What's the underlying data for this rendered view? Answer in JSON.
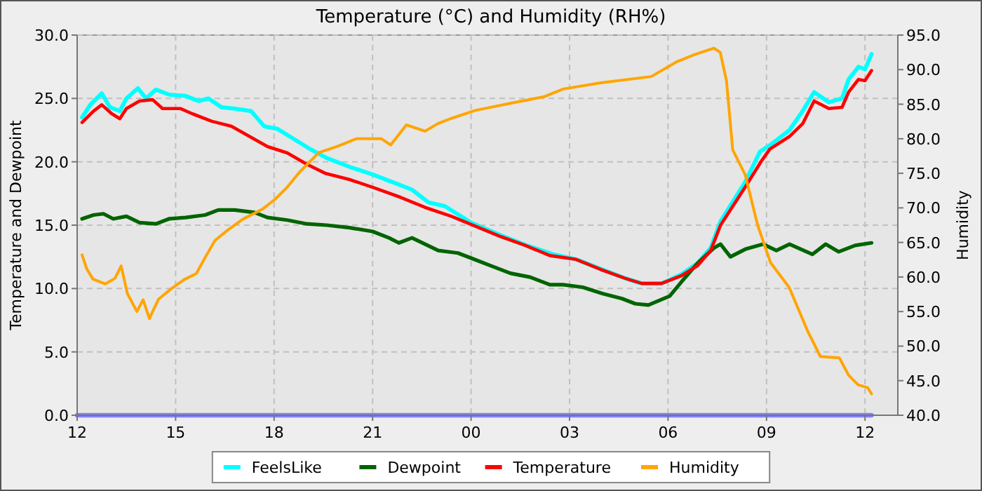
{
  "chart_data": {
    "type": "line",
    "title": "Temperature (°C) and Humidity (RH%)",
    "ylabel": "Temperature and Dewpoint",
    "y2label": "Humidity",
    "xlim": [
      12,
      37
    ],
    "xticks": [
      {
        "value": 12,
        "label": "12"
      },
      {
        "value": 15,
        "label": "15"
      },
      {
        "value": 18,
        "label": "18"
      },
      {
        "value": 21,
        "label": "21"
      },
      {
        "value": 24,
        "label": "00"
      },
      {
        "value": 27,
        "label": "03"
      },
      {
        "value": 30,
        "label": "06"
      },
      {
        "value": 33,
        "label": "09"
      },
      {
        "value": 36,
        "label": "12"
      }
    ],
    "ylim": [
      0,
      30
    ],
    "yticks": [
      {
        "value": 0,
        "label": "0.0"
      },
      {
        "value": 5,
        "label": "5.0"
      },
      {
        "value": 10,
        "label": "10.0"
      },
      {
        "value": 15,
        "label": "15.0"
      },
      {
        "value": 20,
        "label": "20.0"
      },
      {
        "value": 25,
        "label": "25.0"
      },
      {
        "value": 30,
        "label": "30.0"
      }
    ],
    "y2lim": [
      40,
      95
    ],
    "y2ticks": [
      {
        "value": 40,
        "label": "40.0"
      },
      {
        "value": 45,
        "label": "45.0"
      },
      {
        "value": 50,
        "label": "50.0"
      },
      {
        "value": 55,
        "label": "55.0"
      },
      {
        "value": 60,
        "label": "60.0"
      },
      {
        "value": 65,
        "label": "65.0"
      },
      {
        "value": 70,
        "label": "70.0"
      },
      {
        "value": 75,
        "label": "75.0"
      },
      {
        "value": 80,
        "label": "80.0"
      },
      {
        "value": 85,
        "label": "85.0"
      },
      {
        "value": 90,
        "label": "90.0"
      },
      {
        "value": 95,
        "label": "95.0"
      }
    ],
    "grid": true,
    "legend": "bottom",
    "marker": "none",
    "line_style": "solid",
    "series": [
      {
        "color": "#8080ff",
        "x": [
          12,
          36.2
        ],
        "values": [
          0,
          0
        ]
      },
      {
        "name": "FeelsLike",
        "color": "#00ffff",
        "x": [
          12.15,
          12.4,
          12.75,
          13.0,
          13.3,
          13.5,
          13.85,
          14.1,
          14.4,
          14.8,
          15.3,
          15.7,
          16.0,
          16.4,
          16.8,
          17.3,
          17.7,
          18.1,
          18.6,
          19.1,
          19.6,
          20.3,
          21.0,
          21.6,
          22.2,
          22.7,
          23.2,
          24.0,
          24.9,
          25.7,
          26.5,
          27.2,
          28.0,
          28.7,
          29.2,
          29.8,
          30.4,
          30.9,
          31.3,
          31.6,
          32.35,
          32.8,
          33.1,
          33.7,
          34.1,
          34.45,
          34.9,
          35.3,
          35.5,
          35.8,
          36.0,
          36.2
        ],
        "values": [
          23.5,
          24.5,
          25.4,
          24.3,
          24.0,
          25.0,
          25.8,
          25.0,
          25.7,
          25.3,
          25.2,
          24.8,
          25.0,
          24.3,
          24.2,
          24.0,
          22.8,
          22.6,
          21.8,
          21.0,
          20.3,
          19.6,
          19.0,
          18.4,
          17.8,
          16.8,
          16.5,
          15.2,
          14.2,
          13.4,
          12.7,
          12.3,
          11.5,
          10.8,
          10.4,
          10.4,
          11.1,
          12.0,
          13.2,
          15.3,
          18.4,
          20.8,
          21.3,
          22.5,
          24.0,
          25.5,
          24.7,
          25.0,
          26.5,
          27.5,
          27.3,
          28.5
        ]
      },
      {
        "name": "Dewpoint",
        "color": "#006400",
        "x": [
          12.15,
          12.5,
          12.8,
          13.1,
          13.5,
          13.9,
          14.4,
          14.8,
          15.3,
          15.9,
          16.3,
          16.8,
          17.4,
          17.8,
          18.4,
          19.0,
          19.6,
          20.3,
          21.0,
          21.5,
          21.8,
          22.2,
          22.6,
          23.0,
          23.6,
          24.1,
          24.6,
          25.2,
          25.8,
          26.4,
          26.8,
          27.4,
          28.0,
          28.6,
          29.0,
          29.4,
          30.05,
          30.4,
          30.9,
          31.4,
          31.6,
          31.9,
          32.35,
          32.9,
          33.3,
          33.7,
          34.4,
          34.8,
          35.2,
          35.7,
          36.2
        ],
        "values": [
          15.5,
          15.8,
          15.9,
          15.5,
          15.7,
          15.2,
          15.1,
          15.5,
          15.6,
          15.8,
          16.2,
          16.2,
          16.0,
          15.6,
          15.4,
          15.1,
          15.0,
          14.8,
          14.5,
          14.0,
          13.6,
          14.0,
          13.5,
          13.0,
          12.8,
          12.3,
          11.8,
          11.2,
          10.9,
          10.3,
          10.3,
          10.1,
          9.6,
          9.2,
          8.8,
          8.7,
          9.4,
          10.5,
          12.0,
          13.2,
          13.5,
          12.5,
          13.1,
          13.5,
          13.0,
          13.5,
          12.7,
          13.5,
          12.9,
          13.4,
          13.6
        ]
      },
      {
        "name": "Temperature",
        "color": "#ff0000",
        "x": [
          12.15,
          12.5,
          12.75,
          13.05,
          13.3,
          13.5,
          13.9,
          14.3,
          14.6,
          15.15,
          15.5,
          16.1,
          16.7,
          17.25,
          17.8,
          18.4,
          19.0,
          19.55,
          20.3,
          21.1,
          21.85,
          22.6,
          23.4,
          24.15,
          24.9,
          25.65,
          26.4,
          27.2,
          27.95,
          28.7,
          29.2,
          29.8,
          30.4,
          30.9,
          31.3,
          31.6,
          32.35,
          32.83,
          33.1,
          33.7,
          34.1,
          34.45,
          34.9,
          35.3,
          35.5,
          35.8,
          36.0,
          36.2
        ],
        "values": [
          23.1,
          24.0,
          24.5,
          23.8,
          23.4,
          24.2,
          24.8,
          24.9,
          24.2,
          24.2,
          23.8,
          23.2,
          22.8,
          22.0,
          21.2,
          20.7,
          19.8,
          19.1,
          18.6,
          17.9,
          17.2,
          16.4,
          15.7,
          14.9,
          14.1,
          13.4,
          12.6,
          12.3,
          11.5,
          10.8,
          10.4,
          10.4,
          11.0,
          11.8,
          13.0,
          15.0,
          18.0,
          20.0,
          21.0,
          22.0,
          23.0,
          24.8,
          24.2,
          24.3,
          25.5,
          26.5,
          26.4,
          27.2
        ]
      },
      {
        "name": "Humidity",
        "color": "#ffa500",
        "axis": "y2",
        "x": [
          12.15,
          12.29,
          12.48,
          12.86,
          13.15,
          13.34,
          13.53,
          13.82,
          14.01,
          14.2,
          14.48,
          14.87,
          15.25,
          15.63,
          15.92,
          16.2,
          16.59,
          17.06,
          17.64,
          18.02,
          18.4,
          18.78,
          19.36,
          19.93,
          20.5,
          21.27,
          21.55,
          22.03,
          22.6,
          22.99,
          23.37,
          24.13,
          25.28,
          26.24,
          26.81,
          27.96,
          29.49,
          30.25,
          30.82,
          31.4,
          31.59,
          31.78,
          31.97,
          32.35,
          32.73,
          33.12,
          33.69,
          34.26,
          34.64,
          35.22,
          35.5,
          35.79,
          36.08,
          36.2
        ],
        "values": [
          63.2,
          61.2,
          59.7,
          59.0,
          59.8,
          61.6,
          57.6,
          55.0,
          56.7,
          54.0,
          56.8,
          58.3,
          59.6,
          60.5,
          63.0,
          65.3,
          66.8,
          68.4,
          69.8,
          71.2,
          73.0,
          75.2,
          78.0,
          78.9,
          80.0,
          80.0,
          79.1,
          82.0,
          81.1,
          82.2,
          82.9,
          84.1,
          85.2,
          86.1,
          87.2,
          88.1,
          89.0,
          91.1,
          92.2,
          93.1,
          92.5,
          88.4,
          78.4,
          74.8,
          67.5,
          62.1,
          58.5,
          52.1,
          48.5,
          48.3,
          45.8,
          44.4,
          44.0,
          43.1
        ]
      }
    ]
  }
}
